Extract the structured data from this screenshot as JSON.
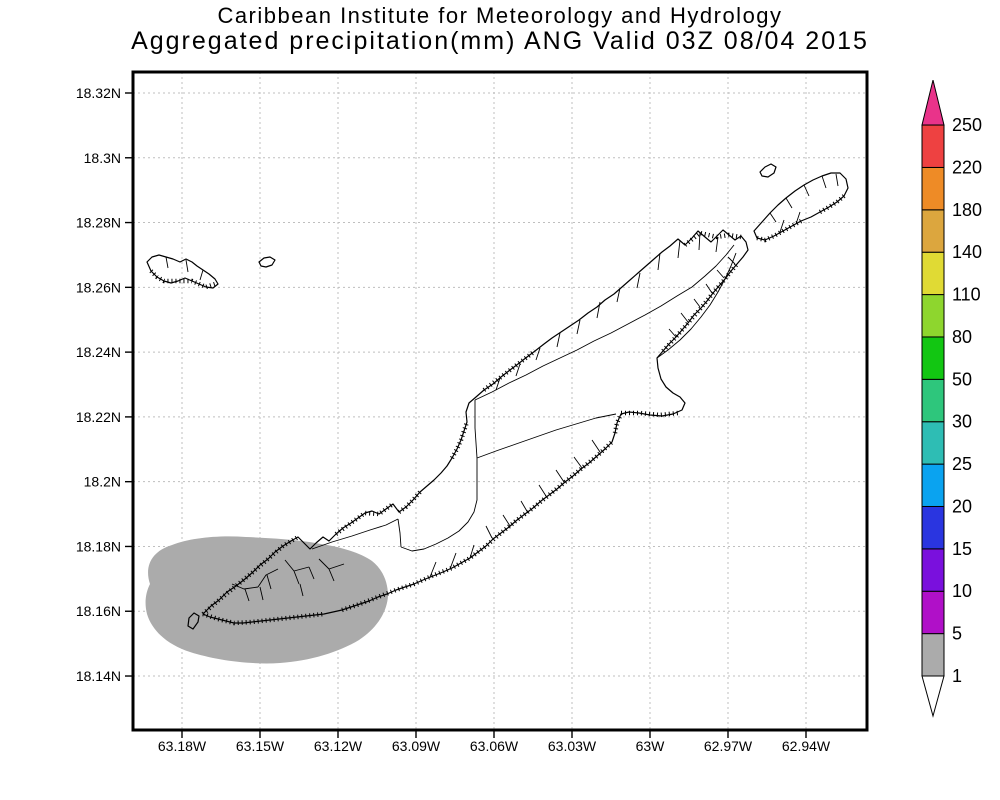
{
  "title": {
    "line1": "Caribbean Institute for Meteorology and Hydrology",
    "line2": "Aggregated precipitation(mm) ANG Valid 03Z 08/04 2015"
  },
  "axes": {
    "x_tick_labels": [
      "63.18W",
      "63.15W",
      "63.12W",
      "63.09W",
      "63.06W",
      "63.03W",
      "63W",
      "62.97W",
      "62.94W"
    ],
    "y_tick_labels_top_to_bottom": [
      "18.32N",
      "18.3N",
      "18.28N",
      "18.26N",
      "18.24N",
      "18.22N",
      "18.2N",
      "18.18N",
      "18.16N",
      "18.14N"
    ]
  },
  "colorbar": {
    "levels_bottom_to_top": [
      "1",
      "5",
      "10",
      "15",
      "20",
      "25",
      "30",
      "50",
      "80",
      "110",
      "140",
      "180",
      "220",
      "250"
    ],
    "segment_colors_bottom_to_top": [
      "#ababab",
      "#b010c8",
      "#7a10dd",
      "#2a35e0",
      "#0aa3f0",
      "#2ebdb4",
      "#2ec67c",
      "#12c612",
      "#8ed62e",
      "#e0da34",
      "#dca63e",
      "#ee8b26",
      "#ee4141"
    ],
    "arrow_above_color": "#e9338a",
    "arrow_below_color": "#ffffff"
  },
  "map": {
    "region_code": "ANG",
    "shaded_precip_region": {
      "fill_color": "#ababab",
      "legend_value": "1-5"
    }
  }
}
